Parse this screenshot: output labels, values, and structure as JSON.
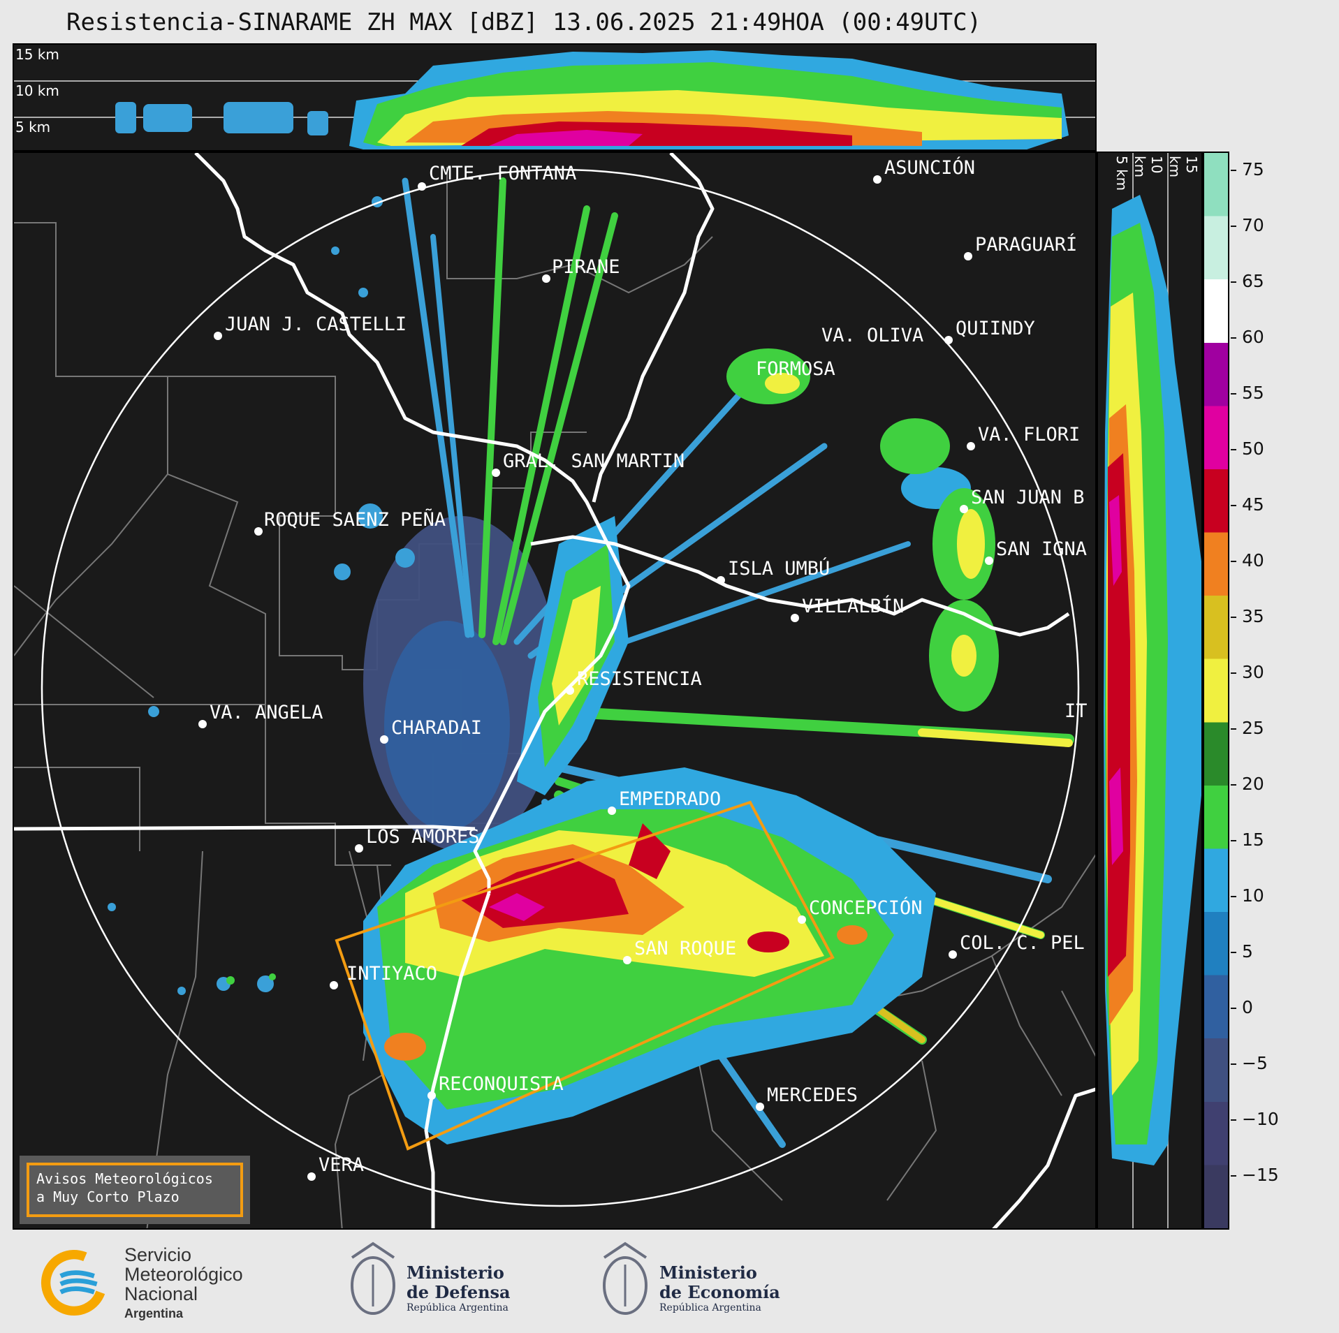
{
  "title": "Resistencia-SINARAME ZH MAX [dBZ] 13.06.2025 21:49HOA (00:49UTC)",
  "top_section": {
    "height_labels": [
      "15 km",
      "10 km",
      "5 km"
    ]
  },
  "side_section": {
    "height_labels": [
      "5 km",
      "10 km",
      "15 km"
    ]
  },
  "colorbar": {
    "unit": "dBZ",
    "ticks": [
      "75",
      "70",
      "65",
      "60",
      "55",
      "50",
      "45",
      "40",
      "35",
      "30",
      "25",
      "20",
      "15",
      "10",
      "5",
      "0",
      "−5",
      "−10",
      "−15"
    ],
    "colors": {
      "c70": "#8fdfbf",
      "c65": "#c8efe0",
      "c60": "#ffffff",
      "c55": "#a000a0",
      "c50": "#e000a0",
      "c45": "#c80020",
      "c40": "#f08020",
      "c35": "#d8c020",
      "c30": "#f0f040",
      "c25": "#2a8a2a",
      "c20": "#40d040",
      "c15": "#30a8e0",
      "c10": "#2080c0",
      "c5": "#3060a0",
      "c0": "#405080",
      "cm5": "#404070",
      "cm10": "#3a3a60"
    }
  },
  "cities": [
    {
      "name": "CMTE. FONTANA"
    },
    {
      "name": "PIRANE"
    },
    {
      "name": "ASUNCIÓN"
    },
    {
      "name": "PARAGUARÍ"
    },
    {
      "name": "JUAN J. CASTELLI"
    },
    {
      "name": "VA. OLIVA"
    },
    {
      "name": "QUIINDY"
    },
    {
      "name": "FORMOSA"
    },
    {
      "name": "VA. FLORI"
    },
    {
      "name": "GRAL. SAN MARTIN"
    },
    {
      "name": "SAN JUAN B"
    },
    {
      "name": "ROQUE SAENZ PEÑA"
    },
    {
      "name": "SAN IGNA"
    },
    {
      "name": "ISLA UMBÚ"
    },
    {
      "name": "VILLALBÍN"
    },
    {
      "name": "RESISTENCIA"
    },
    {
      "name": "IT"
    },
    {
      "name": "VA. ANGELA"
    },
    {
      "name": "CHARADAI"
    },
    {
      "name": "EMPEDRADO"
    },
    {
      "name": "LOS AMORES"
    },
    {
      "name": "CONCEPCIÓN"
    },
    {
      "name": "SAN ROQUE"
    },
    {
      "name": "COL. C. PEL"
    },
    {
      "name": "INTIYACO"
    },
    {
      "name": "RECONQUISTA"
    },
    {
      "name": "MERCEDES"
    },
    {
      "name": "VERA"
    }
  ],
  "aviso": {
    "line1": "Avisos Meteorológicos",
    "line2": "a Muy Corto Plazo"
  },
  "logos": {
    "smn": {
      "line1": "Servicio",
      "line2": "Meteorológico",
      "line3": "Nacional",
      "line4": "Argentina"
    },
    "defensa": {
      "line1": "Ministerio",
      "line2": "de Defensa",
      "line3": "República Argentina"
    },
    "economia": {
      "line1": "Ministerio",
      "line2": "de Economía",
      "line3": "República Argentina"
    }
  }
}
